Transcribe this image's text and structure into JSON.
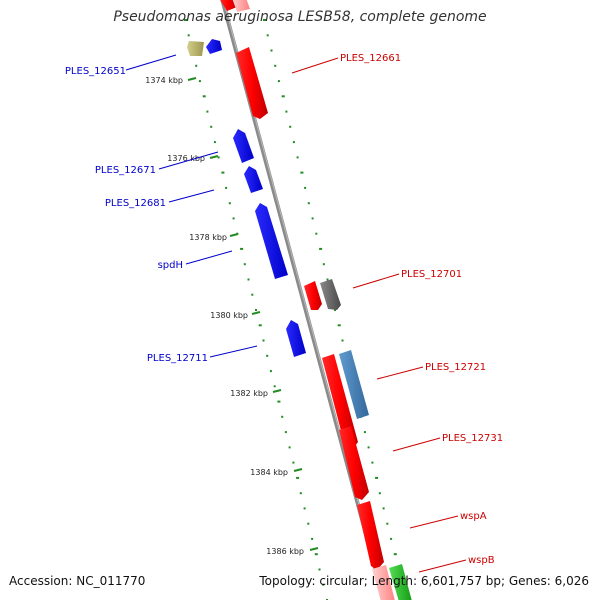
{
  "title": "Pseudomonas aeruginosa LESB58, complete genome",
  "footer": {
    "accession": "Accession: NC_011770",
    "stats": "Topology: circular; Length: 6,601,757 bp; Genes: 6,026"
  },
  "colors": {
    "backbone": "#888888",
    "forward_gene": "#ff0000",
    "reverse_gene": "#0000ff",
    "other_forward": "#4682b4",
    "other_reverse": "#bdb76b",
    "pseudo": "#666666",
    "rna": "#22bb22",
    "ticks": "#228b22"
  },
  "ticks": [
    "1374 kbp",
    "1376 kbp",
    "1378 kbp",
    "1380 kbp",
    "1382 kbp",
    "1384 kbp",
    "1386 kbp"
  ],
  "left_labels": [
    "PLES_12651",
    "PLES_12671",
    "PLES_12681",
    "spdH",
    "PLES_12711"
  ],
  "right_labels": [
    "PLES_12661",
    "PLES_12701",
    "PLES_12721",
    "PLES_12731",
    "wspA",
    "wspB"
  ]
}
